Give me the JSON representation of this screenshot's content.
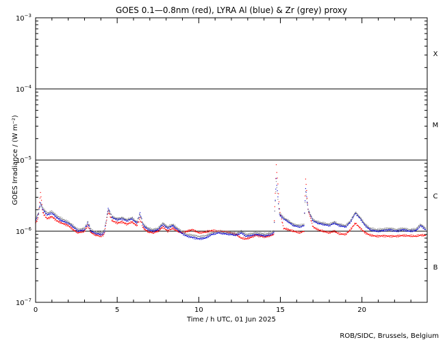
{
  "chart_data": {
    "type": "scatter",
    "title": "GOES 0.1—0.8nm (red), LYRA Al (blue) & Zr (grey) proxy",
    "xlabel": "Time / h UTC, 01 Jun 2025",
    "ylabel": "GOES Irradiance / (W m⁻²)",
    "xlim": [
      0,
      24
    ],
    "ylim": [
      1e-07,
      0.001
    ],
    "yscale": "log",
    "x_ticks": [
      0,
      5,
      10,
      15,
      20
    ],
    "y_ticks": [
      {
        "value": 1e-07,
        "label": "10",
        "exp": "−7"
      },
      {
        "value": 1e-06,
        "label": "10",
        "exp": "−6"
      },
      {
        "value": 1e-05,
        "label": "10",
        "exp": "−5"
      },
      {
        "value": 0.0001,
        "label": "10",
        "exp": "−4"
      },
      {
        "value": 0.001,
        "label": "10",
        "exp": "−3"
      }
    ],
    "reference_lines": [
      1e-06,
      1e-05,
      0.0001
    ],
    "flare_classes": [
      {
        "label": "B",
        "center": 3.16e-07
      },
      {
        "label": "C",
        "center": 3.16e-06
      },
      {
        "label": "M",
        "center": 3.16e-05
      },
      {
        "label": "X",
        "center": 0.000316
      }
    ],
    "series": [
      {
        "color": "#ff0000",
        "points": [
          [
            0,
            1.3e-06
          ],
          [
            0.15,
            1.5e-06
          ],
          [
            0.3,
            3.5e-06
          ],
          [
            0.45,
            1.8e-06
          ],
          [
            0.7,
            1.5e-06
          ],
          [
            1.0,
            1.6e-06
          ],
          [
            1.3,
            1.4e-06
          ],
          [
            1.6,
            1.3e-06
          ],
          [
            2.0,
            1.2e-06
          ],
          [
            2.3,
            1.05e-06
          ],
          [
            2.6,
            9.5e-07
          ],
          [
            3.0,
            1e-06
          ],
          [
            3.2,
            1.2e-06
          ],
          [
            3.4,
            9.5e-07
          ],
          [
            3.7,
            8.8e-07
          ],
          [
            4.0,
            8.5e-07
          ],
          [
            4.2,
            9e-07
          ],
          [
            4.45,
            1.9e-06
          ],
          [
            4.7,
            1.4e-06
          ],
          [
            5.0,
            1.3e-06
          ],
          [
            5.3,
            1.35e-06
          ],
          [
            5.6,
            1.25e-06
          ],
          [
            5.9,
            1.35e-06
          ],
          [
            6.2,
            1.2e-06
          ],
          [
            6.4,
            1.5e-06
          ],
          [
            6.6,
            1.1e-06
          ],
          [
            6.9,
            9.8e-07
          ],
          [
            7.2,
            9.5e-07
          ],
          [
            7.5,
            1e-06
          ],
          [
            7.8,
            1.15e-06
          ],
          [
            8.1,
            1e-06
          ],
          [
            8.4,
            1.1e-06
          ],
          [
            8.7,
            1e-06
          ],
          [
            9.0,
            9.5e-07
          ],
          [
            9.3,
            1e-06
          ],
          [
            9.6,
            1.05e-06
          ],
          [
            10.0,
            9.5e-07
          ],
          [
            10.4,
            9.7e-07
          ],
          [
            10.8,
            1.02e-06
          ],
          [
            11.2,
            1e-06
          ],
          [
            11.6,
            9.8e-07
          ],
          [
            12.0,
            9.5e-07
          ],
          [
            12.3,
            9e-07
          ],
          [
            12.6,
            8e-07
          ],
          [
            12.9,
            7.8e-07
          ],
          [
            13.2,
            8.2e-07
          ],
          [
            13.5,
            8.8e-07
          ],
          [
            13.8,
            8.5e-07
          ],
          [
            14.1,
            8.3e-07
          ],
          [
            14.4,
            8.7e-07
          ],
          [
            14.6,
            9e-07
          ],
          [
            14.75,
            8.5e-06
          ],
          [
            14.85,
            4.5e-06
          ],
          [
            14.95,
            2e-06
          ],
          [
            15.2,
            1.1e-06
          ],
          [
            15.5,
            1.05e-06
          ],
          [
            15.8,
            1e-06
          ],
          [
            16.2,
            9.5e-07
          ],
          [
            16.45,
            1e-06
          ],
          [
            16.55,
            5.5e-06
          ],
          [
            16.7,
            2e-06
          ],
          [
            17.0,
            1.15e-06
          ],
          [
            17.3,
            1.05e-06
          ],
          [
            17.6,
            1e-06
          ],
          [
            18.0,
            9.5e-07
          ],
          [
            18.3,
            1e-06
          ],
          [
            18.6,
            9.2e-07
          ],
          [
            19.0,
            9e-07
          ],
          [
            19.3,
            1.05e-06
          ],
          [
            19.6,
            1.3e-06
          ],
          [
            19.9,
            1.1e-06
          ],
          [
            20.2,
            9.5e-07
          ],
          [
            20.5,
            8.8e-07
          ],
          [
            20.9,
            8.5e-07
          ],
          [
            21.3,
            8.6e-07
          ],
          [
            21.7,
            8.5e-07
          ],
          [
            22.1,
            8.5e-07
          ],
          [
            22.5,
            8.7e-07
          ],
          [
            22.9,
            8.6e-07
          ],
          [
            23.3,
            8.5e-07
          ],
          [
            23.6,
            8.8e-07
          ],
          [
            23.9,
            8.7e-07
          ]
        ]
      },
      {
        "color": "#0000cc",
        "points": [
          [
            0,
            1.4e-06
          ],
          [
            0.15,
            1.7e-06
          ],
          [
            0.3,
            2.5e-06
          ],
          [
            0.45,
            2e-06
          ],
          [
            0.7,
            1.7e-06
          ],
          [
            1.0,
            1.8e-06
          ],
          [
            1.3,
            1.55e-06
          ],
          [
            1.6,
            1.4e-06
          ],
          [
            2.0,
            1.3e-06
          ],
          [
            2.3,
            1.15e-06
          ],
          [
            2.6,
            1e-06
          ],
          [
            3.0,
            1.05e-06
          ],
          [
            3.2,
            1.3e-06
          ],
          [
            3.4,
            1e-06
          ],
          [
            3.7,
            9.3e-07
          ],
          [
            4.0,
            9e-07
          ],
          [
            4.2,
            9.5e-07
          ],
          [
            4.45,
            2.1e-06
          ],
          [
            4.7,
            1.55e-06
          ],
          [
            5.0,
            1.45e-06
          ],
          [
            5.3,
            1.5e-06
          ],
          [
            5.6,
            1.4e-06
          ],
          [
            5.9,
            1.5e-06
          ],
          [
            6.2,
            1.3e-06
          ],
          [
            6.4,
            1.8e-06
          ],
          [
            6.6,
            1.2e-06
          ],
          [
            6.9,
            1.05e-06
          ],
          [
            7.2,
            1e-06
          ],
          [
            7.5,
            1.05e-06
          ],
          [
            7.8,
            1.25e-06
          ],
          [
            8.1,
            1.1e-06
          ],
          [
            8.4,
            1.2e-06
          ],
          [
            8.7,
            1.05e-06
          ],
          [
            9.0,
            9.2e-07
          ],
          [
            9.3,
            8.5e-07
          ],
          [
            9.6,
            8.2e-07
          ],
          [
            10.0,
            7.8e-07
          ],
          [
            10.4,
            8e-07
          ],
          [
            10.8,
            9e-07
          ],
          [
            11.2,
            9.5e-07
          ],
          [
            11.6,
            9.2e-07
          ],
          [
            12.0,
            9e-07
          ],
          [
            12.3,
            8.8e-07
          ],
          [
            12.6,
            9.5e-07
          ],
          [
            12.9,
            8.5e-07
          ],
          [
            13.2,
            8.7e-07
          ],
          [
            13.5,
            9e-07
          ],
          [
            13.8,
            8.8e-07
          ],
          [
            14.1,
            8.6e-07
          ],
          [
            14.4,
            9e-07
          ],
          [
            14.6,
            9.5e-07
          ],
          [
            14.75,
            5.5e-06
          ],
          [
            14.85,
            3e-06
          ],
          [
            14.95,
            1.7e-06
          ],
          [
            15.2,
            1.5e-06
          ],
          [
            15.5,
            1.35e-06
          ],
          [
            15.8,
            1.2e-06
          ],
          [
            16.2,
            1.15e-06
          ],
          [
            16.45,
            1.2e-06
          ],
          [
            16.55,
            4e-06
          ],
          [
            16.7,
            2e-06
          ],
          [
            17.0,
            1.4e-06
          ],
          [
            17.3,
            1.3e-06
          ],
          [
            17.6,
            1.25e-06
          ],
          [
            18.0,
            1.2e-06
          ],
          [
            18.3,
            1.3e-06
          ],
          [
            18.6,
            1.2e-06
          ],
          [
            19.0,
            1.15e-06
          ],
          [
            19.3,
            1.35e-06
          ],
          [
            19.6,
            1.8e-06
          ],
          [
            19.9,
            1.5e-06
          ],
          [
            20.2,
            1.2e-06
          ],
          [
            20.5,
            1.05e-06
          ],
          [
            20.9,
            1e-06
          ],
          [
            21.3,
            1.02e-06
          ],
          [
            21.7,
            1.05e-06
          ],
          [
            22.1,
            1e-06
          ],
          [
            22.5,
            1.05e-06
          ],
          [
            22.9,
            1e-06
          ],
          [
            23.3,
            1.02e-06
          ],
          [
            23.6,
            1.2e-06
          ],
          [
            23.9,
            1.05e-06
          ]
        ]
      },
      {
        "color": "#888888",
        "points": [
          [
            0,
            1.5e-06
          ],
          [
            0.15,
            1.75e-06
          ],
          [
            0.3,
            2.4e-06
          ],
          [
            0.45,
            2.1e-06
          ],
          [
            0.7,
            1.8e-06
          ],
          [
            1.0,
            1.9e-06
          ],
          [
            1.3,
            1.65e-06
          ],
          [
            1.6,
            1.5e-06
          ],
          [
            2.0,
            1.35e-06
          ],
          [
            2.3,
            1.2e-06
          ],
          [
            2.6,
            1.05e-06
          ],
          [
            3.0,
            1.1e-06
          ],
          [
            3.2,
            1.35e-06
          ],
          [
            3.4,
            1.05e-06
          ],
          [
            3.7,
            9.7e-07
          ],
          [
            4.0,
            9.5e-07
          ],
          [
            4.2,
            1e-06
          ],
          [
            4.45,
            2e-06
          ],
          [
            4.7,
            1.6e-06
          ],
          [
            5.0,
            1.5e-06
          ],
          [
            5.3,
            1.55e-06
          ],
          [
            5.6,
            1.45e-06
          ],
          [
            5.9,
            1.55e-06
          ],
          [
            6.2,
            1.35e-06
          ],
          [
            6.4,
            1.7e-06
          ],
          [
            6.6,
            1.25e-06
          ],
          [
            6.9,
            1.1e-06
          ],
          [
            7.2,
            1.05e-06
          ],
          [
            7.5,
            1.1e-06
          ],
          [
            7.8,
            1.3e-06
          ],
          [
            8.1,
            1.15e-06
          ],
          [
            8.4,
            1.25e-06
          ],
          [
            8.7,
            1.1e-06
          ],
          [
            9.0,
            9.7e-07
          ],
          [
            9.3,
            9e-07
          ],
          [
            9.6,
            8.8e-07
          ],
          [
            10.0,
            8.4e-07
          ],
          [
            10.4,
            8.6e-07
          ],
          [
            10.8,
            9.5e-07
          ],
          [
            11.2,
            1e-06
          ],
          [
            11.6,
            9.7e-07
          ],
          [
            12.0,
            9.5e-07
          ],
          [
            12.3,
            9.3e-07
          ],
          [
            12.6,
            1e-06
          ],
          [
            12.9,
            9e-07
          ],
          [
            13.2,
            9.2e-07
          ],
          [
            13.5,
            9.5e-07
          ],
          [
            13.8,
            9.3e-07
          ],
          [
            14.1,
            9.1e-07
          ],
          [
            14.4,
            9.5e-07
          ],
          [
            14.6,
            1e-06
          ],
          [
            14.75,
            5e-06
          ],
          [
            14.85,
            2.8e-06
          ],
          [
            14.95,
            1.8e-06
          ],
          [
            15.2,
            1.55e-06
          ],
          [
            15.5,
            1.4e-06
          ],
          [
            15.8,
            1.25e-06
          ],
          [
            16.2,
            1.2e-06
          ],
          [
            16.45,
            1.25e-06
          ],
          [
            16.55,
            3.6e-06
          ],
          [
            16.7,
            2e-06
          ],
          [
            17.0,
            1.45e-06
          ],
          [
            17.3,
            1.35e-06
          ],
          [
            17.6,
            1.3e-06
          ],
          [
            18.0,
            1.25e-06
          ],
          [
            18.3,
            1.35e-06
          ],
          [
            18.6,
            1.25e-06
          ],
          [
            19.0,
            1.2e-06
          ],
          [
            19.3,
            1.4e-06
          ],
          [
            19.6,
            1.85e-06
          ],
          [
            19.9,
            1.55e-06
          ],
          [
            20.2,
            1.25e-06
          ],
          [
            20.5,
            1.1e-06
          ],
          [
            20.9,
            1.05e-06
          ],
          [
            21.3,
            1.07e-06
          ],
          [
            21.7,
            1.1e-06
          ],
          [
            22.1,
            1.05e-06
          ],
          [
            22.5,
            1.1e-06
          ],
          [
            22.9,
            1.05e-06
          ],
          [
            23.3,
            1.07e-06
          ],
          [
            23.6,
            1.25e-06
          ],
          [
            23.9,
            1.1e-06
          ]
        ]
      }
    ],
    "credit": "ROB/SIDC, Brussels, Belgium"
  }
}
